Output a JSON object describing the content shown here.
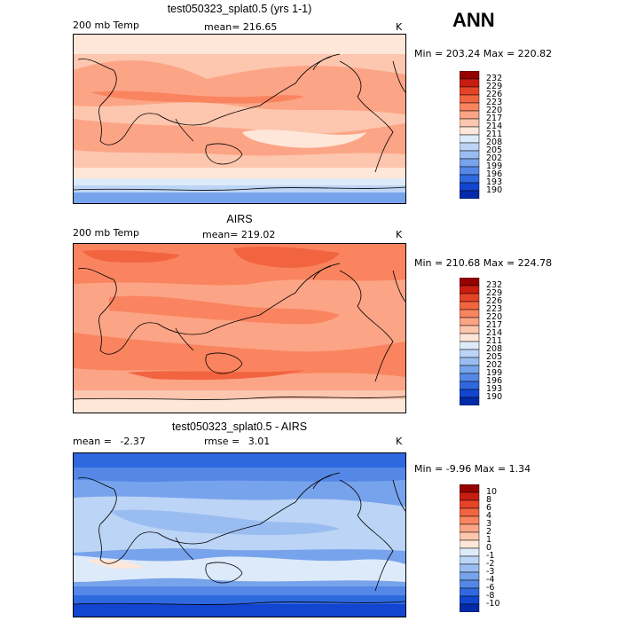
{
  "season": "ANN",
  "colors": {
    "warm": [
      "#fee6d8",
      "#fdc6ae",
      "#fca486",
      "#f9845f",
      "#f26440",
      "#e54427",
      "#c91d12",
      "#960000"
    ],
    "cool": [
      "#ddeaf9",
      "#bcd4f5",
      "#9abdf1",
      "#77a3ec",
      "#5588e6",
      "#2f69df",
      "#1245d0",
      "#032aa8",
      "#00127a"
    ],
    "diff": [
      "#960000",
      "#c91d12",
      "#e54427",
      "#f26440",
      "#f9845f",
      "#fca486",
      "#fdc6ae",
      "#fee6d8",
      "#ddeaf9",
      "#bcd4f5",
      "#9abdf1",
      "#77a3ec",
      "#5588e6",
      "#2f69df",
      "#1245d0",
      "#032aa8",
      "#00127a"
    ]
  },
  "panels": [
    {
      "title": "test050323_splat0.5 (yrs 1-1)",
      "variable": "200 mb Temp",
      "mean_label": "mean=",
      "mean_value": "216.65",
      "units": "K",
      "minmax": "Min = 203.24 Max = 220.82",
      "colorbar_levels": [
        "232",
        "229",
        "226",
        "223",
        "220",
        "217",
        "214",
        "211",
        "208",
        "205",
        "202",
        "199",
        "196",
        "193",
        "190"
      ]
    },
    {
      "title": "AIRS",
      "variable": "200 mb Temp",
      "mean_label": "mean=",
      "mean_value": "219.02",
      "units": "K",
      "minmax": "Min = 210.68 Max = 224.78",
      "colorbar_levels": [
        "232",
        "229",
        "226",
        "223",
        "220",
        "217",
        "214",
        "211",
        "208",
        "205",
        "202",
        "199",
        "196",
        "193",
        "190"
      ]
    },
    {
      "title": "test050323_splat0.5 - AIRS",
      "mean_label": "mean =",
      "mean_value": "-2.37",
      "rmse_label": "rmse =",
      "rmse_value": "3.01",
      "units": "K",
      "minmax": "Min = -9.96 Max = 1.34",
      "colorbar_levels": [
        "10",
        "8",
        "6",
        "4",
        "3",
        "2",
        "1",
        "0",
        "-1",
        "-2",
        "-3",
        "-4",
        "-6",
        "-8",
        "-10"
      ]
    }
  ]
}
